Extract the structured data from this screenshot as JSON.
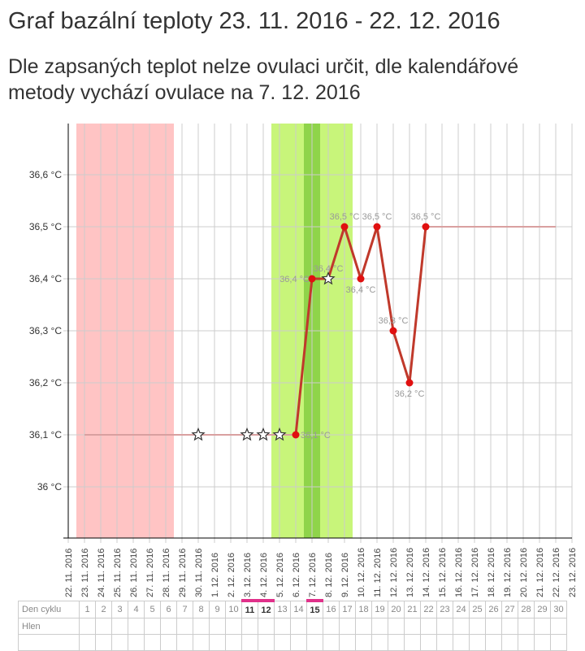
{
  "title": "Graf bazální teploty 23. 11. 2016 - 22. 12. 2016",
  "subtitle": "Dle zapsaných teplot nelze ovulaci určit, dle kalendářové metody vychází ovulace na 7. 12. 2016",
  "chart_data": {
    "type": "line",
    "ylim": [
      35.95,
      36.7
    ],
    "y_ticks": [
      {
        "v": 36.6,
        "label": "36,6 °C"
      },
      {
        "v": 36.5,
        "label": "36,5 °C"
      },
      {
        "v": 36.4,
        "label": "36,4 °C"
      },
      {
        "v": 36.3,
        "label": "36,3 °C"
      },
      {
        "v": 36.2,
        "label": "36,2 °C"
      },
      {
        "v": 36.1,
        "label": "36,1 °C"
      },
      {
        "v": 36.0,
        "label": "36 °C"
      }
    ],
    "dates": [
      "22. 11. 2016",
      "23. 11. 2016",
      "24. 11. 2016",
      "25. 11. 2016",
      "26. 11. 2016",
      "27. 11. 2016",
      "28. 11. 2016",
      "29. 11. 2016",
      "30. 11. 2016",
      "1. 12. 2016",
      "2. 12. 2016",
      "3. 12. 2016",
      "4. 12. 2016",
      "5. 12. 2016",
      "6. 12. 2016",
      "7. 12. 2016",
      "8. 12. 2016",
      "9. 12. 2016",
      "10. 12. 2016",
      "11. 12. 2016",
      "12. 12. 2016",
      "13. 12. 2016",
      "14. 12. 2016",
      "15. 12. 2016",
      "16. 12. 2016",
      "17. 12. 2016",
      "18. 12. 2016",
      "19. 12. 2016",
      "20. 12. 2016",
      "21. 12. 2016",
      "22. 12. 2016",
      "23. 12. 2016"
    ],
    "bands": [
      {
        "from": 1,
        "to": 6,
        "color": "#ffc4c4",
        "name": "menstruation"
      },
      {
        "from": 13,
        "to": 17,
        "color": "#c8f57a",
        "name": "fertile"
      },
      {
        "from": 15,
        "to": 15,
        "color": "#8fd44a",
        "name": "ovulation"
      }
    ],
    "flat_before": {
      "from": 1,
      "to": 14,
      "value": 36.1
    },
    "flat_after": {
      "from": 22,
      "to": 30,
      "value": 36.5
    },
    "stars": [
      {
        "i": 8,
        "v": 36.1
      },
      {
        "i": 11,
        "v": 36.1
      },
      {
        "i": 12,
        "v": 36.1
      },
      {
        "i": 13,
        "v": 36.1
      }
    ],
    "series": [
      {
        "i": 14,
        "v": 36.1,
        "label": "36,1 °C",
        "marker": "dot",
        "pos": "right"
      },
      {
        "i": 15,
        "v": 36.4,
        "label": "36,4 °C",
        "marker": "dot",
        "pos": "left"
      },
      {
        "i": 16,
        "v": 36.4,
        "label": "36,4 °C",
        "marker": "star",
        "pos": "above"
      },
      {
        "i": 17,
        "v": 36.5,
        "label": "36,5 °C",
        "marker": "dot",
        "pos": "above"
      },
      {
        "i": 18,
        "v": 36.4,
        "label": "36,4 °C",
        "marker": "dot",
        "pos": "below"
      },
      {
        "i": 19,
        "v": 36.5,
        "label": "36,5 °C",
        "marker": "dot",
        "pos": "above"
      },
      {
        "i": 20,
        "v": 36.3,
        "label": "36,3 °C",
        "marker": "dot",
        "pos": "above"
      },
      {
        "i": 21,
        "v": 36.2,
        "label": "36,2 °C",
        "marker": "dot",
        "pos": "below"
      },
      {
        "i": 22,
        "v": 36.5,
        "label": "36,5 °C",
        "marker": "dot",
        "pos": "above"
      }
    ]
  },
  "table": {
    "row1_label": "Den cyklu",
    "row2_label": "Hlen",
    "days": [
      "1",
      "2",
      "3",
      "4",
      "5",
      "6",
      "7",
      "8",
      "9",
      "10",
      "11",
      "12",
      "13",
      "14",
      "15",
      "16",
      "17",
      "18",
      "19",
      "20",
      "21",
      "22",
      "23",
      "24",
      "25",
      "26",
      "27",
      "28",
      "29",
      "30"
    ],
    "marked_days": [
      "11",
      "12",
      "15"
    ]
  }
}
